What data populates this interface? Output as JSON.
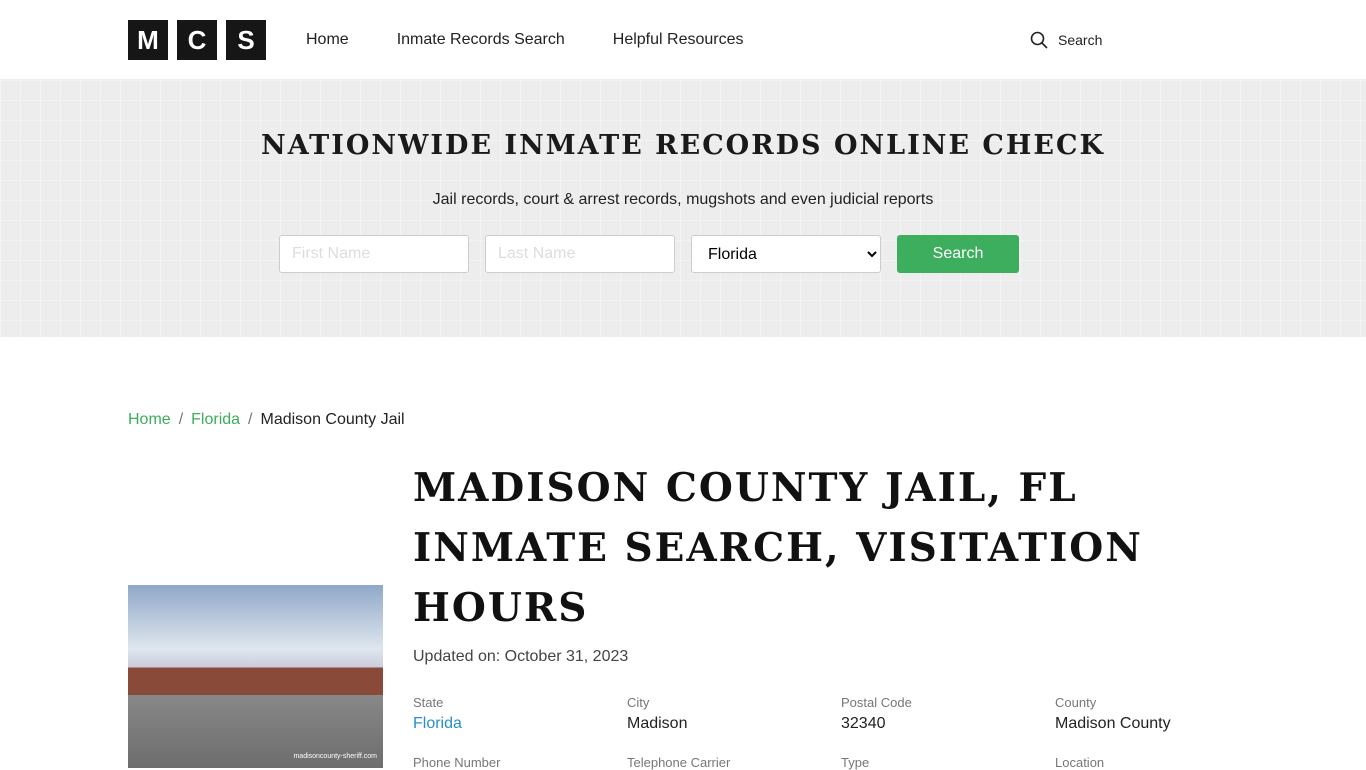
{
  "logo": [
    "M",
    "C",
    "S"
  ],
  "nav": {
    "links": [
      "Home",
      "Inmate Records Search",
      "Helpful Resources"
    ],
    "search_label": "Search"
  },
  "hero": {
    "title": "NATIONWIDE INMATE RECORDS ONLINE CHECK",
    "subtitle": "Jail records, court & arrest records, mugshots and even judicial reports",
    "first_placeholder": "First Name",
    "last_placeholder": "Last Name",
    "state_value": "Florida",
    "search_button": "Search"
  },
  "breadcrumb": [
    "Home",
    "Florida",
    "Madison County Jail"
  ],
  "photo": {
    "watermark": "madisoncounty-sheriff.com"
  },
  "page": {
    "title": "MADISON COUNTY JAIL, FL INMATE SEARCH, VISITATION HOURS",
    "updated": "Updated on: October 31, 2023"
  },
  "details": [
    {
      "label": "State",
      "value": "Florida"
    },
    {
      "label": "City",
      "value": "Madison"
    },
    {
      "label": "Postal Code",
      "value": "32340"
    },
    {
      "label": "County",
      "value": "Madison County"
    },
    {
      "label": "Phone Number",
      "value": ""
    },
    {
      "label": "Telephone Carrier",
      "value": ""
    },
    {
      "label": "Type",
      "value": ""
    },
    {
      "label": "Location",
      "value": ""
    }
  ]
}
